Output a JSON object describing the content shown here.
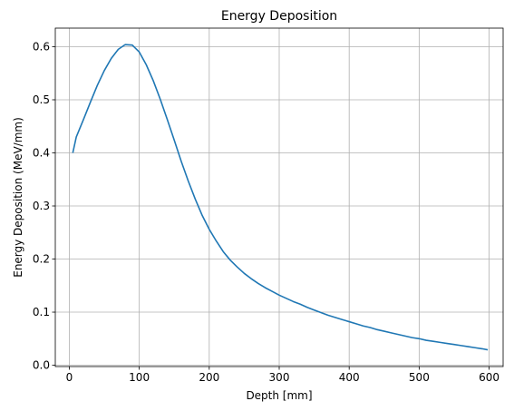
{
  "chart_data": {
    "type": "line",
    "title": "Energy Deposition",
    "xlabel": "Depth [mm]",
    "ylabel": "Energy Deposition (MeV/mm)",
    "xlim": [
      -20,
      620
    ],
    "ylim": [
      -0.0025,
      0.635
    ],
    "xticks": [
      0,
      100,
      200,
      300,
      400,
      500,
      600
    ],
    "yticks": [
      0.0,
      0.1,
      0.2,
      0.3,
      0.4,
      0.5,
      0.6
    ],
    "xtick_labels": [
      "0",
      "100",
      "200",
      "300",
      "400",
      "500",
      "600"
    ],
    "ytick_labels": [
      "0.0",
      "0.1",
      "0.2",
      "0.3",
      "0.4",
      "0.5",
      "0.6"
    ],
    "grid": true,
    "line_color": "#1f77b4",
    "series": [
      {
        "x": [
          5,
          10,
          20,
          30,
          40,
          50,
          60,
          70,
          80,
          90,
          100,
          110,
          120,
          130,
          140,
          150,
          160,
          170,
          180,
          190,
          200,
          210,
          220,
          230,
          240,
          250,
          260,
          270,
          280,
          290,
          300,
          310,
          320,
          330,
          340,
          350,
          360,
          370,
          380,
          390,
          400,
          410,
          420,
          430,
          440,
          450,
          460,
          470,
          480,
          490,
          500,
          510,
          520,
          530,
          540,
          550,
          560,
          570,
          580,
          590,
          598
        ],
        "y": [
          0.4,
          0.43,
          0.462,
          0.495,
          0.527,
          0.555,
          0.578,
          0.595,
          0.604,
          0.603,
          0.59,
          0.566,
          0.536,
          0.501,
          0.463,
          0.424,
          0.384,
          0.347,
          0.313,
          0.282,
          0.256,
          0.234,
          0.214,
          0.198,
          0.185,
          0.173,
          0.163,
          0.154,
          0.146,
          0.139,
          0.132,
          0.126,
          0.12,
          0.115,
          0.109,
          0.104,
          0.099,
          0.094,
          0.09,
          0.086,
          0.082,
          0.078,
          0.074,
          0.071,
          0.067,
          0.064,
          0.061,
          0.058,
          0.055,
          0.052,
          0.05,
          0.047,
          0.045,
          0.043,
          0.041,
          0.039,
          0.037,
          0.035,
          0.033,
          0.031,
          0.029
        ]
      }
    ]
  }
}
